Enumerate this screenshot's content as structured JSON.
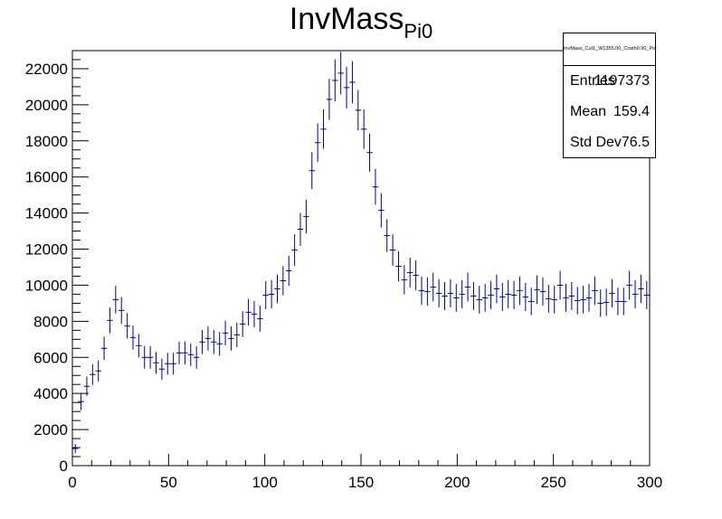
{
  "title": {
    "main": "InvMass",
    "sub": "Pi0"
  },
  "stats": {
    "name": "InvMass_Cut1_W1355.00_Costh0.90_PolState0.50_",
    "rows": [
      {
        "label": "Entries",
        "value": "1197373"
      },
      {
        "label": "Mean",
        "value": "159.4"
      },
      {
        "label": "Std Dev",
        "value": "76.5"
      }
    ]
  },
  "colors": {
    "marker": "#000080",
    "axis": "#000000"
  },
  "chart_data": {
    "type": "scatter",
    "title": "InvMass_Pi0",
    "xlabel": "",
    "ylabel": "",
    "xlim": [
      0,
      300
    ],
    "ylim": [
      0,
      23000
    ],
    "grid": false,
    "legend": "top-right",
    "bin_width": 3,
    "xticks": [
      "0",
      "50",
      "100",
      "150",
      "200",
      "250",
      "300"
    ],
    "yticks": [
      "0",
      "2000",
      "4000",
      "6000",
      "8000",
      "10000",
      "12000",
      "14000",
      "16000",
      "18000",
      "20000",
      "22000"
    ],
    "x": [
      1.5,
      4.5,
      7.5,
      10.5,
      13.5,
      16.5,
      19.5,
      22.5,
      25.5,
      28.5,
      31.5,
      34.5,
      37.5,
      40.5,
      43.5,
      46.5,
      49.5,
      52.5,
      55.5,
      58.5,
      61.5,
      64.5,
      67.5,
      70.5,
      73.5,
      76.5,
      79.5,
      82.5,
      85.5,
      88.5,
      91.5,
      94.5,
      97.5,
      100.5,
      103.5,
      106.5,
      109.5,
      112.5,
      115.5,
      118.5,
      121.5,
      124.5,
      127.5,
      130.5,
      133.5,
      136.5,
      139.5,
      142.5,
      145.5,
      148.5,
      151.5,
      154.5,
      157.5,
      160.5,
      163.5,
      166.5,
      169.5,
      172.5,
      175.5,
      178.5,
      181.5,
      184.5,
      187.5,
      190.5,
      193.5,
      196.5,
      199.5,
      202.5,
      205.5,
      208.5,
      211.5,
      214.5,
      217.5,
      220.5,
      223.5,
      226.5,
      229.5,
      232.5,
      235.5,
      238.5,
      241.5,
      244.5,
      247.5,
      250.5,
      253.5,
      256.5,
      259.5,
      262.5,
      265.5,
      268.5,
      271.5,
      274.5,
      277.5,
      280.5,
      283.5,
      286.5,
      289.5,
      292.5,
      295.5,
      298.5
    ],
    "values": [
      950,
      3550,
      4400,
      5050,
      5250,
      6500,
      8050,
      9200,
      8600,
      7750,
      7100,
      6650,
      6000,
      6000,
      5700,
      5350,
      5650,
      5650,
      6250,
      6250,
      6150,
      6000,
      6850,
      7050,
      6850,
      6750,
      7350,
      7050,
      7250,
      7850,
      8500,
      8400,
      8150,
      9450,
      9500,
      9800,
      10250,
      10800,
      11950,
      13100,
      13800,
      16350,
      17900,
      18650,
      20300,
      21350,
      21750,
      20950,
      21250,
      19700,
      18650,
      17350,
      15450,
      14150,
      12750,
      11950,
      11050,
      10300,
      10700,
      10550,
      9700,
      9650,
      9900,
      9550,
      9400,
      9550,
      9300,
      9500,
      9900,
      9400,
      9200,
      9300,
      9450,
      9800,
      9350,
      9500,
      9450,
      9700,
      9350,
      9100,
      9750,
      9650,
      9250,
      9200,
      10000,
      9300,
      9400,
      9150,
      9200,
      9300,
      9700,
      9000,
      9050,
      9550,
      9100,
      9100,
      10000,
      9500,
      9800,
      9450
    ]
  }
}
